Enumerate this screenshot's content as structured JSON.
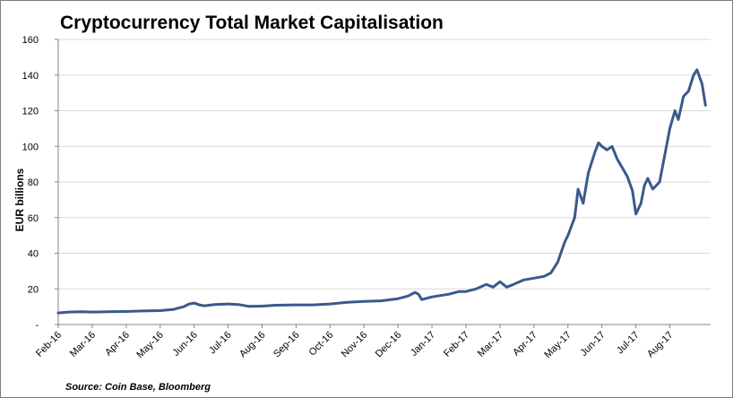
{
  "chart_data": {
    "type": "line",
    "title": "Cryptocurrency Total Market Capitalisation",
    "xlabel": "",
    "ylabel": "EUR billions",
    "source": "Source: Coin Base, Bloomberg",
    "ylim": [
      0,
      160
    ],
    "y_ticks": [
      "-",
      "20",
      "40",
      "60",
      "80",
      "100",
      "120",
      "140",
      "160"
    ],
    "y_tick_values": [
      0,
      20,
      40,
      60,
      80,
      100,
      120,
      140,
      160
    ],
    "categories": [
      "Feb-16",
      "Mar-16",
      "Apr-16",
      "May-16",
      "Jun-16",
      "Jul-16",
      "Aug-16",
      "Sep-16",
      "Oct-16",
      "Nov-16",
      "Dec-16",
      "Jan-17",
      "Feb-17",
      "Mar-17",
      "Apr-17",
      "May-17",
      "Jun-17",
      "Jul-17",
      "Aug-17"
    ],
    "grid": true,
    "legend": "none",
    "line_color": "#3a5a8c",
    "series": [
      {
        "values": [
          [
            0,
            6.5
          ],
          [
            0.3,
            7
          ],
          [
            0.7,
            7.2
          ],
          [
            1,
            7
          ],
          [
            1.5,
            7.2
          ],
          [
            2,
            7.3
          ],
          [
            2.5,
            7.6
          ],
          [
            3,
            7.8
          ],
          [
            3.4,
            8.5
          ],
          [
            3.7,
            10
          ],
          [
            3.85,
            11.5
          ],
          [
            4,
            12
          ],
          [
            4.15,
            11
          ],
          [
            4.3,
            10.5
          ],
          [
            4.6,
            11.2
          ],
          [
            5,
            11.5
          ],
          [
            5.3,
            11.2
          ],
          [
            5.6,
            10.2
          ],
          [
            6,
            10.3
          ],
          [
            6.4,
            10.8
          ],
          [
            7,
            11
          ],
          [
            7.5,
            11
          ],
          [
            8,
            11.5
          ],
          [
            8.5,
            12.5
          ],
          [
            9,
            13
          ],
          [
            9.5,
            13.3
          ],
          [
            10,
            14.5
          ],
          [
            10.3,
            16
          ],
          [
            10.5,
            18
          ],
          [
            10.6,
            17
          ],
          [
            10.7,
            14
          ],
          [
            11,
            15.5
          ],
          [
            11.5,
            17
          ],
          [
            11.8,
            18.5
          ],
          [
            12,
            18.5
          ],
          [
            12.3,
            20
          ],
          [
            12.6,
            22.5
          ],
          [
            12.8,
            21
          ],
          [
            13,
            24
          ],
          [
            13.2,
            21
          ],
          [
            13.4,
            22.5
          ],
          [
            13.7,
            25
          ],
          [
            14,
            26
          ],
          [
            14.3,
            27
          ],
          [
            14.5,
            29
          ],
          [
            14.7,
            35
          ],
          [
            14.9,
            46
          ],
          [
            15,
            50
          ],
          [
            15.2,
            60
          ],
          [
            15.3,
            76
          ],
          [
            15.45,
            68
          ],
          [
            15.6,
            85
          ],
          [
            15.8,
            97
          ],
          [
            15.9,
            102
          ],
          [
            16,
            100
          ],
          [
            16.15,
            98
          ],
          [
            16.3,
            100
          ],
          [
            16.45,
            93
          ],
          [
            16.6,
            88
          ],
          [
            16.75,
            83
          ],
          [
            16.9,
            75
          ],
          [
            17,
            62
          ],
          [
            17.15,
            68
          ],
          [
            17.25,
            78
          ],
          [
            17.35,
            82
          ],
          [
            17.5,
            76
          ],
          [
            17.7,
            80
          ],
          [
            17.85,
            95
          ],
          [
            18,
            110
          ],
          [
            18.15,
            120
          ],
          [
            18.25,
            115
          ],
          [
            18.4,
            128
          ],
          [
            18.55,
            131
          ],
          [
            18.7,
            140
          ],
          [
            18.8,
            143
          ],
          [
            18.95,
            135
          ],
          [
            19.05,
            123
          ]
        ]
      }
    ]
  }
}
